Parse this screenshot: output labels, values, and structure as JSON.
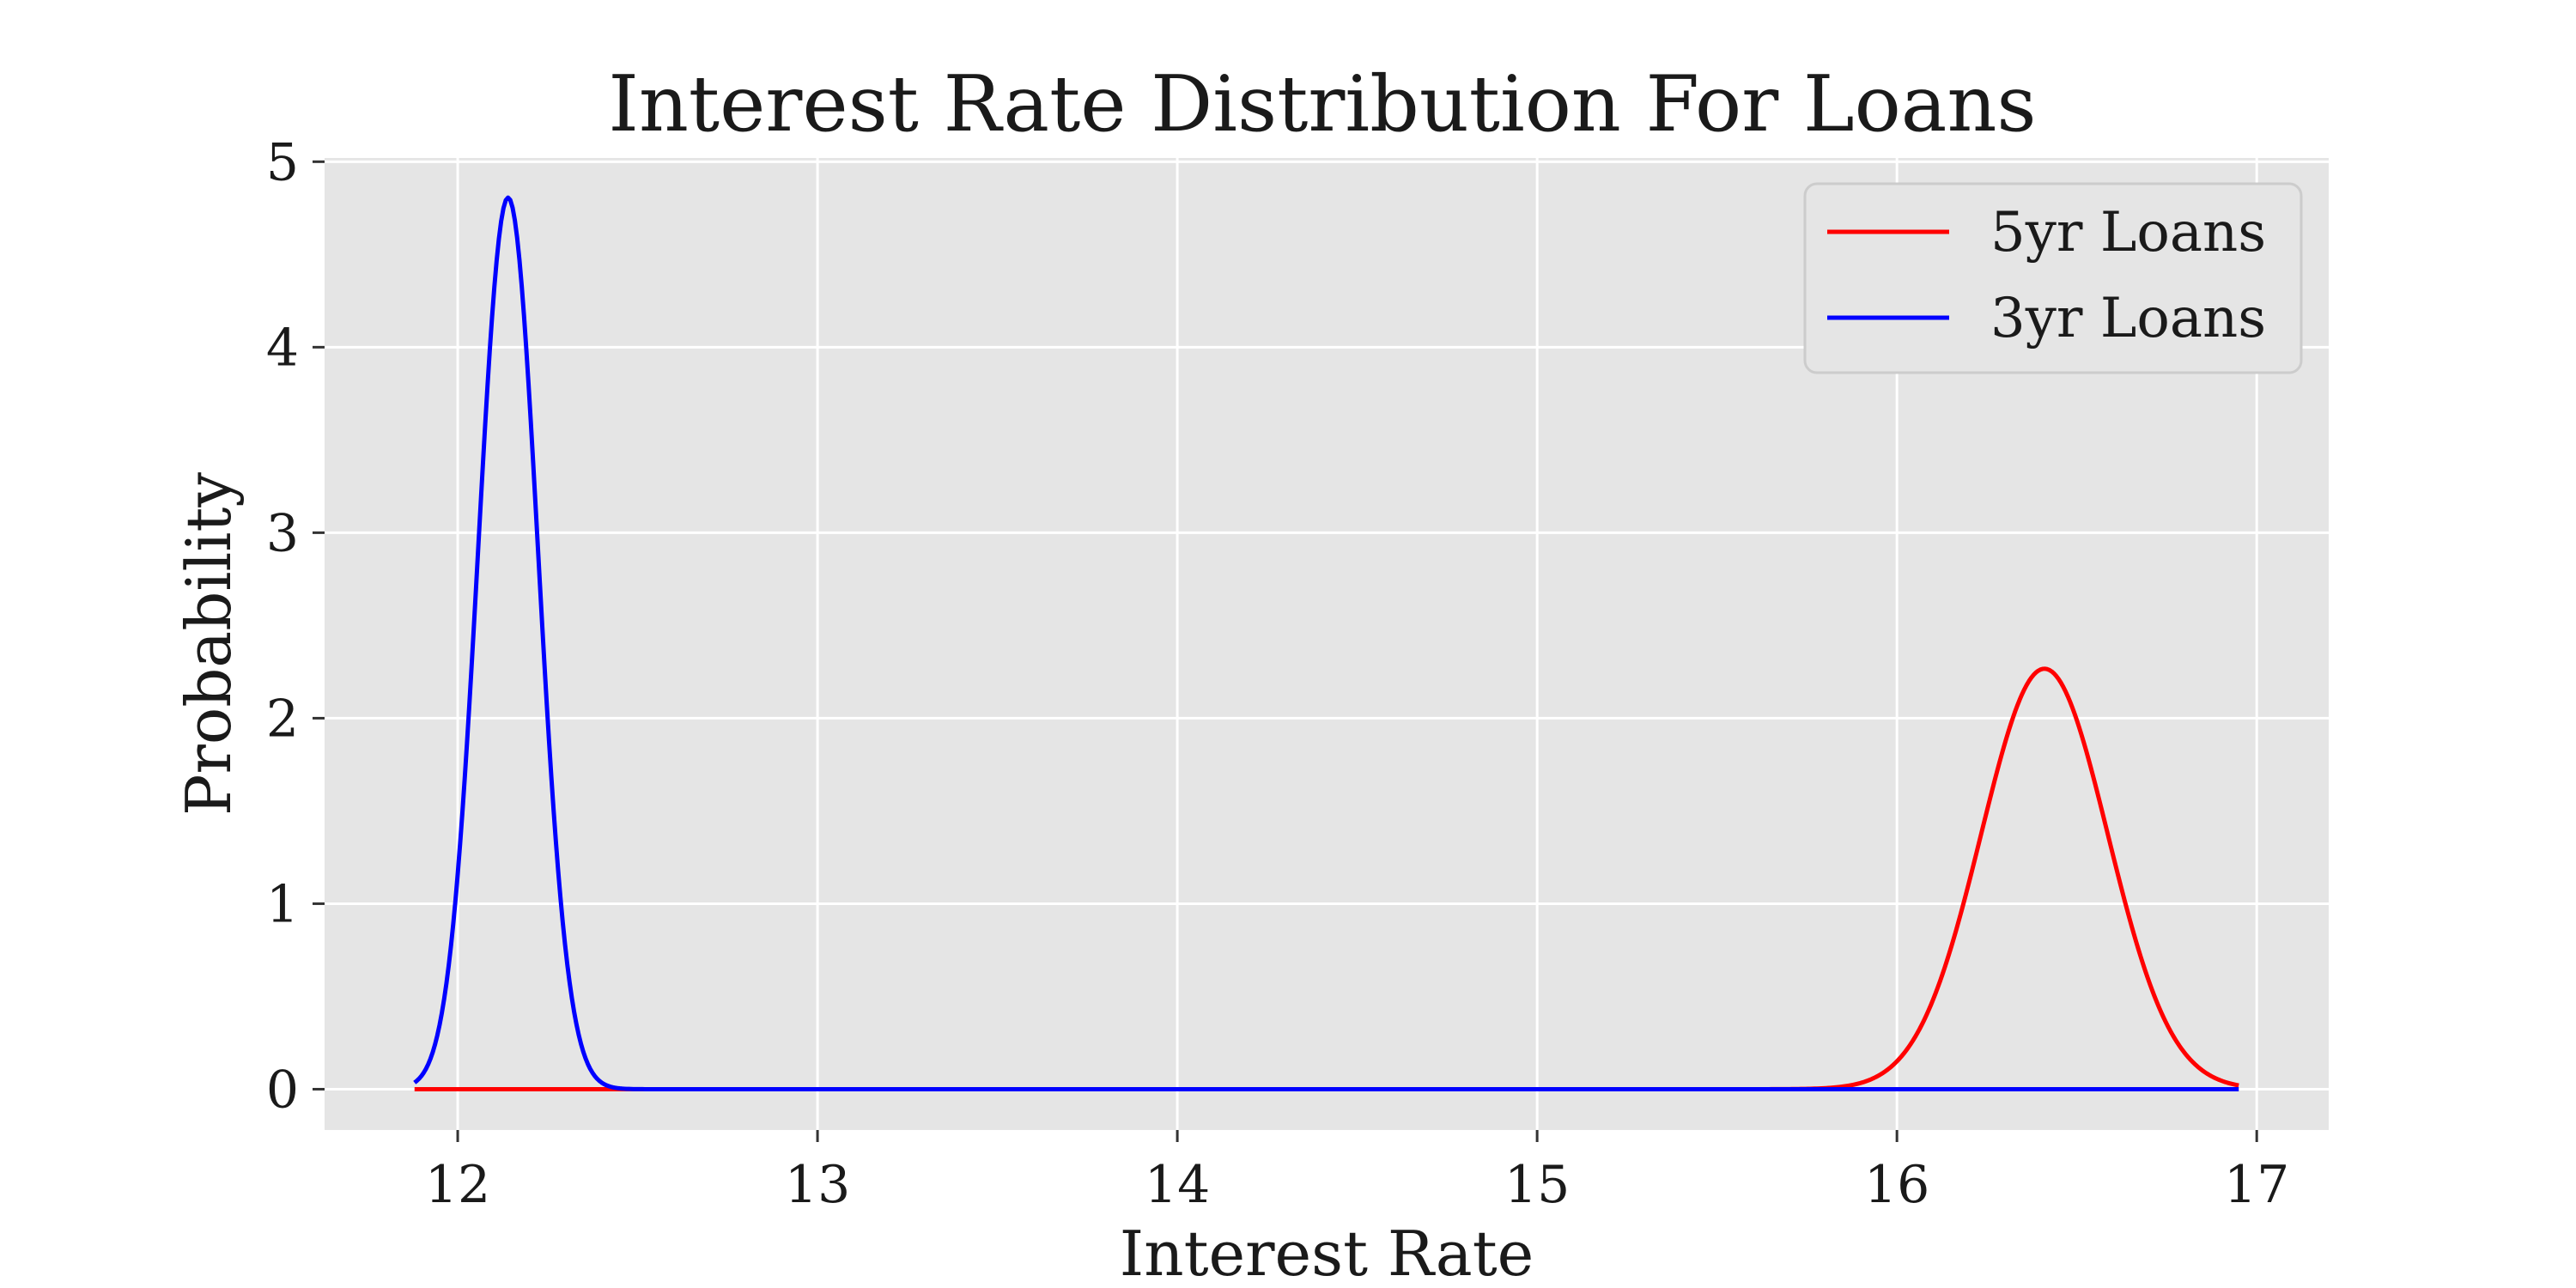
{
  "chart_data": {
    "type": "line",
    "title": "Interest Rate Distribution For Loans",
    "xlabel": "Interest Rate",
    "ylabel": "Probability",
    "xlim": [
      11.63,
      17.2
    ],
    "ylim": [
      -0.22,
      5.02
    ],
    "xticks": [
      12,
      13,
      14,
      15,
      16,
      17
    ],
    "yticks": [
      0,
      1,
      2,
      3,
      4,
      5
    ],
    "grid": true,
    "legend_position": "top-right",
    "series": [
      {
        "name": "5yr Loans",
        "color": "#ff0000",
        "x_range": [
          11.88,
          16.95
        ],
        "distribution": "normal",
        "mean": 16.41,
        "std": 0.176
      },
      {
        "name": "3yr Loans",
        "color": "#0000ff",
        "x_range": [
          11.88,
          16.95
        ],
        "distribution": "normal",
        "mean": 12.14,
        "std": 0.083
      }
    ],
    "colors": {
      "plot_background": "#e5e5e5",
      "grid": "#ffffff"
    }
  }
}
